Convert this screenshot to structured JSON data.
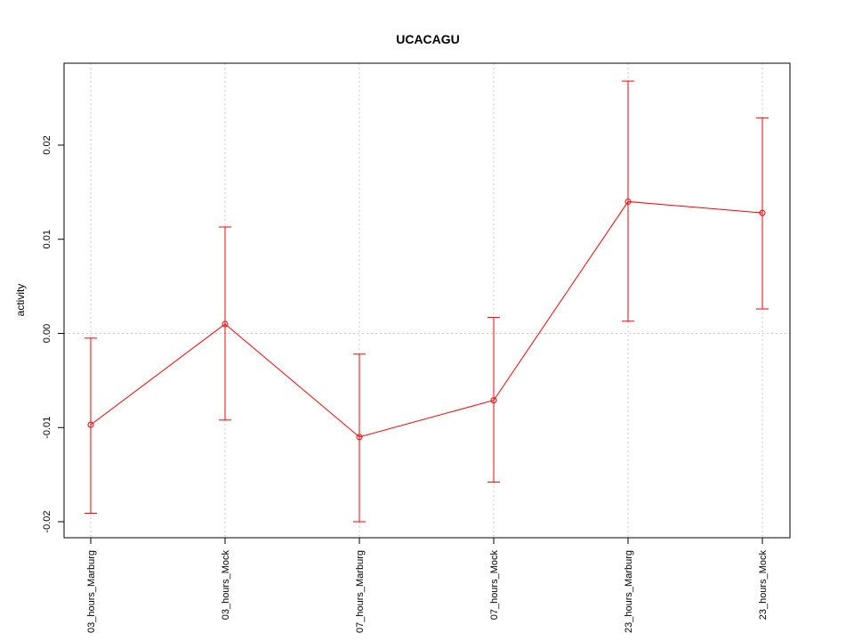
{
  "chart_data": {
    "type": "line",
    "title": "UCACAGU",
    "xlabel": "",
    "ylabel": "activity",
    "categories": [
      "03_hours_Marburg",
      "03_hours_Mock",
      "07_hours_Marburg",
      "07_hours_Mock",
      "23_hours_Marburg",
      "23_hours_Mock"
    ],
    "series": [
      {
        "values": [
          -0.0097,
          0.001,
          -0.011,
          -0.0071,
          0.014,
          0.0128
        ],
        "upper": [
          -0.0005,
          0.0113,
          -0.0022,
          0.0017,
          0.0268,
          0.0229
        ],
        "lower": [
          -0.0191,
          -0.0092,
          -0.02,
          -0.0158,
          0.0013,
          0.0026
        ],
        "color": "#ff0000"
      }
    ],
    "ylim": [
      -0.0217,
      0.0287
    ],
    "yticks": [
      -0.02,
      -0.01,
      0.0,
      0.01,
      0.02
    ],
    "ytick_labels": [
      "-0.02",
      "-0.01",
      "0.00",
      "0.01",
      "0.02"
    ],
    "grid": true,
    "grid_color": "#c8c8c8",
    "zero_line": true
  }
}
